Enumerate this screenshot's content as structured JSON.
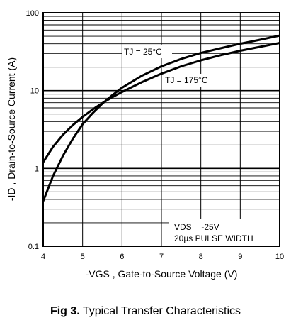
{
  "caption": {
    "fig": "Fig 3.",
    "text": "Typical Transfer Characteristics"
  },
  "chart_data": {
    "type": "line",
    "title": "",
    "xlabel": "-VGS , Gate-to-Source Voltage (V)",
    "ylabel": "-ID , Drain-to-Source Current (A)",
    "xlim": [
      4,
      10
    ],
    "ylim": [
      0.1,
      100
    ],
    "yscale": "log",
    "x_ticks": [
      "4",
      "5",
      "6",
      "7",
      "8",
      "9",
      "10"
    ],
    "y_ticks": [
      "0.1",
      "1",
      "10",
      "100"
    ],
    "grid": true,
    "series": [
      {
        "name": "TJ = 25°C",
        "x": [
          4.0,
          4.25,
          4.5,
          4.75,
          5.0,
          5.25,
          5.5,
          5.75,
          6.0,
          6.5,
          7.0,
          7.5,
          8.0,
          8.5,
          9.0,
          9.5,
          10.0
        ],
        "y": [
          0.38,
          0.8,
          1.45,
          2.4,
          3.7,
          5.1,
          6.8,
          8.7,
          10.9,
          15.5,
          20.5,
          25.5,
          30.5,
          35.0,
          40.0,
          45.0,
          51.0
        ]
      },
      {
        "name": "TJ = 175°C",
        "x": [
          4.0,
          4.25,
          4.5,
          4.75,
          5.0,
          5.25,
          5.5,
          5.75,
          6.0,
          6.5,
          7.0,
          7.5,
          8.0,
          8.5,
          9.0,
          9.5,
          10.0
        ],
        "y": [
          1.2,
          1.9,
          2.7,
          3.6,
          4.6,
          5.7,
          6.9,
          8.2,
          9.6,
          12.8,
          16.5,
          20.5,
          24.5,
          28.5,
          32.5,
          36.5,
          41.0
        ]
      }
    ],
    "annotations": {
      "t25": "TJ = 25°C",
      "t175": "TJ = 175°C",
      "vds": "VDS = -25V",
      "pulse": "20µs PULSE WIDTH"
    }
  }
}
